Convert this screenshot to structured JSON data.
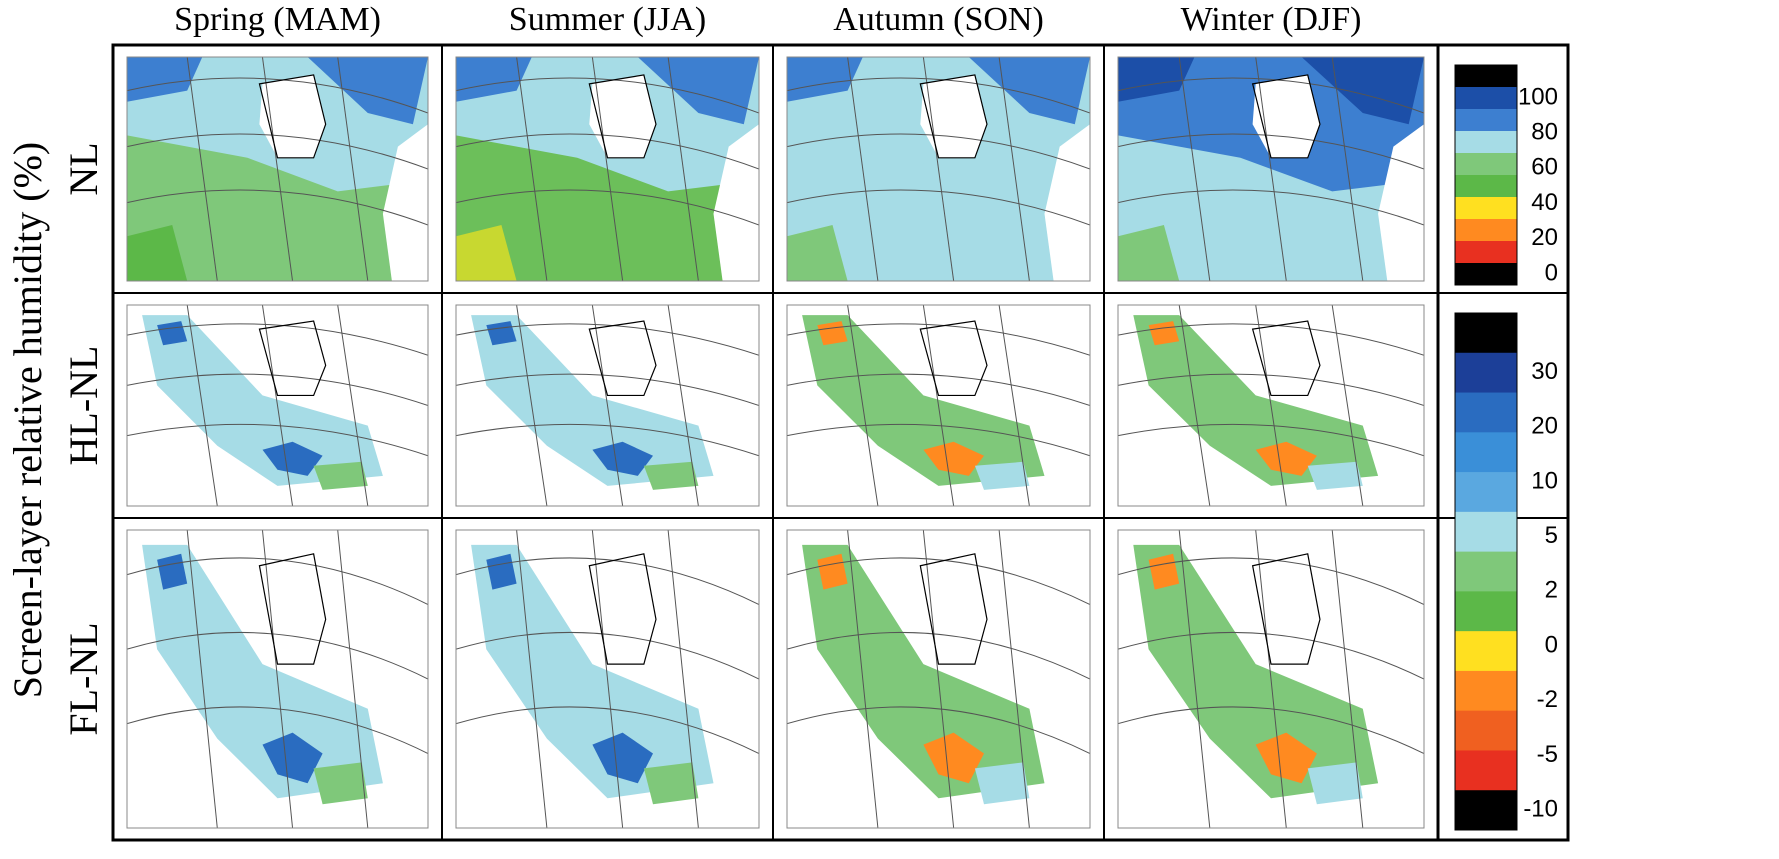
{
  "columns": [
    "Spring (MAM)",
    "Summer (JJA)",
    "Autumn (SON)",
    "Winter (DJF)"
  ],
  "rows": [
    "NL",
    "HL-NL",
    "FL-NL"
  ],
  "ylabel": "Screen-layer relative humidity (%)",
  "colorbars": [
    {
      "colors": [
        "#000000",
        "#1c4fa8",
        "#3d7fd0",
        "#a6dce6",
        "#7fc87a",
        "#5cb848",
        "#ffe020",
        "#ff8a20",
        "#e83020",
        "#000000"
      ],
      "labels": [
        100,
        80,
        60,
        40,
        20,
        0
      ]
    },
    {
      "colors": [
        "#000000",
        "#1c3f98",
        "#2a6cc0",
        "#3a8fd8",
        "#5aa8e0",
        "#a6dce6",
        "#7fc87a",
        "#5cb848",
        "#ffe020",
        "#ff8a20",
        "#f06020",
        "#e83020",
        "#000000"
      ],
      "labels": [
        30,
        20,
        10,
        5,
        2,
        0,
        -2,
        -5,
        -10
      ]
    }
  ]
}
